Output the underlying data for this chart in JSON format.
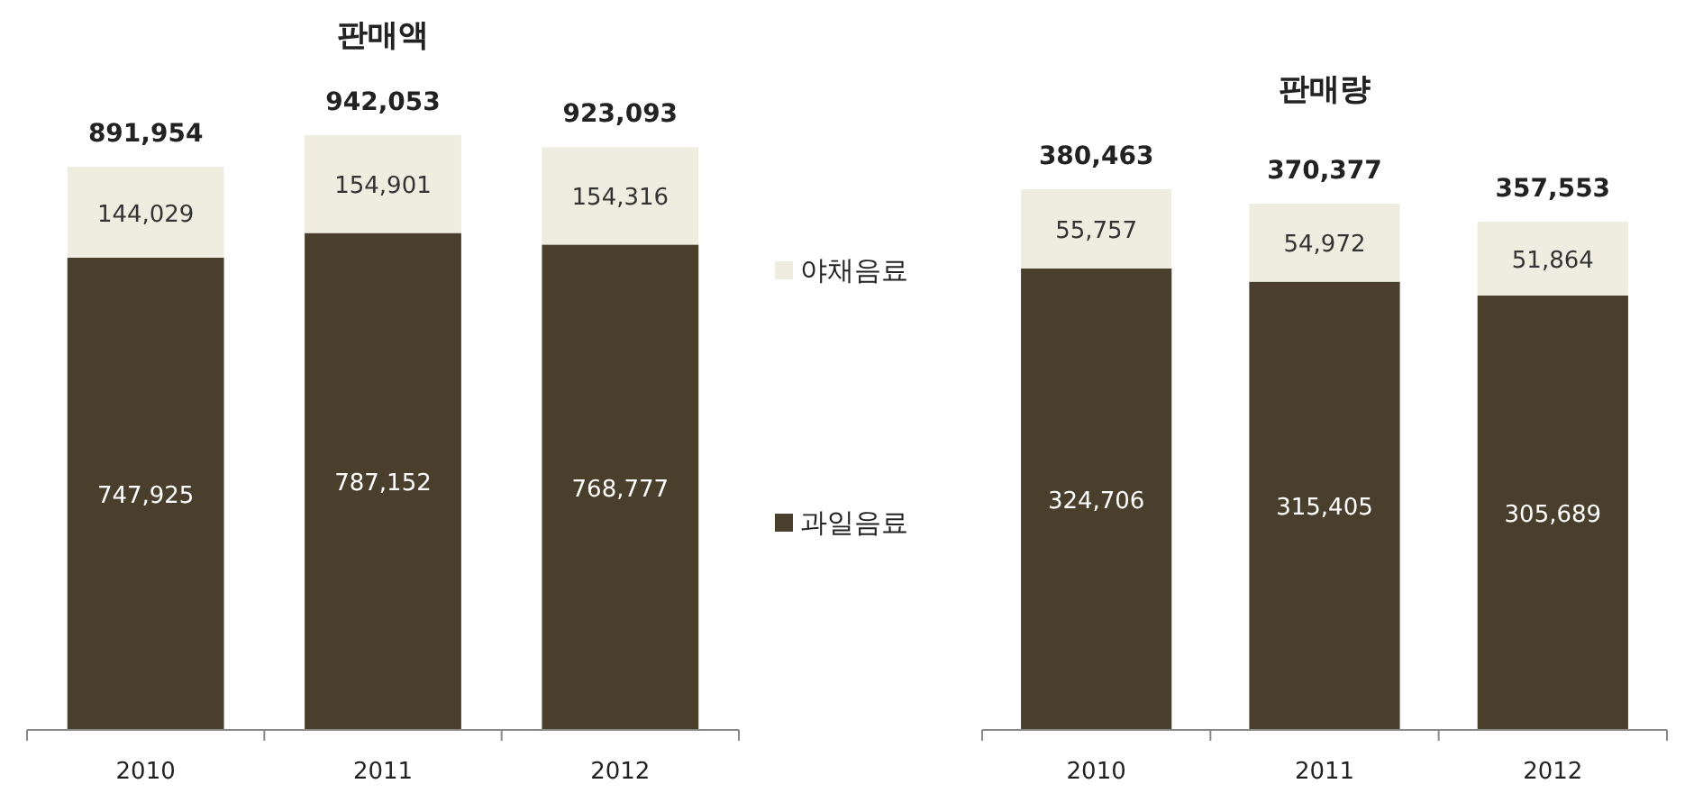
{
  "chart_data": [
    {
      "type": "bar",
      "title": "판매액",
      "stacked": true,
      "legend": "right",
      "categories": [
        "2010",
        "2011",
        "2012"
      ],
      "series": [
        {
          "name": "과일음료",
          "color": "#4a3f2c",
          "values": [
            747925,
            787152,
            768777
          ],
          "value_labels": [
            "747,925",
            "787,152",
            "768,777"
          ]
        },
        {
          "name": "야채음료",
          "color": "#eeeddf",
          "values": [
            144029,
            154901,
            154316
          ],
          "value_labels": [
            "144,029",
            "154,901",
            "154,316"
          ]
        }
      ],
      "totals": [
        "891,954",
        "942,053",
        "923,093"
      ]
    },
    {
      "type": "bar",
      "title": "판매량",
      "stacked": true,
      "categories": [
        "2010",
        "2011",
        "2012"
      ],
      "series": [
        {
          "color": "#4a3f2c",
          "values": [
            324706,
            315405,
            305689
          ],
          "value_labels": [
            "324,706",
            "315,405",
            "305,689"
          ]
        },
        {
          "color": "#eeeddf",
          "values": [
            55757,
            54972,
            51864
          ],
          "value_labels": [
            "55,757",
            "54,972",
            "51,864"
          ]
        }
      ],
      "totals": [
        "380,463",
        "370,377",
        "357,553"
      ]
    }
  ]
}
